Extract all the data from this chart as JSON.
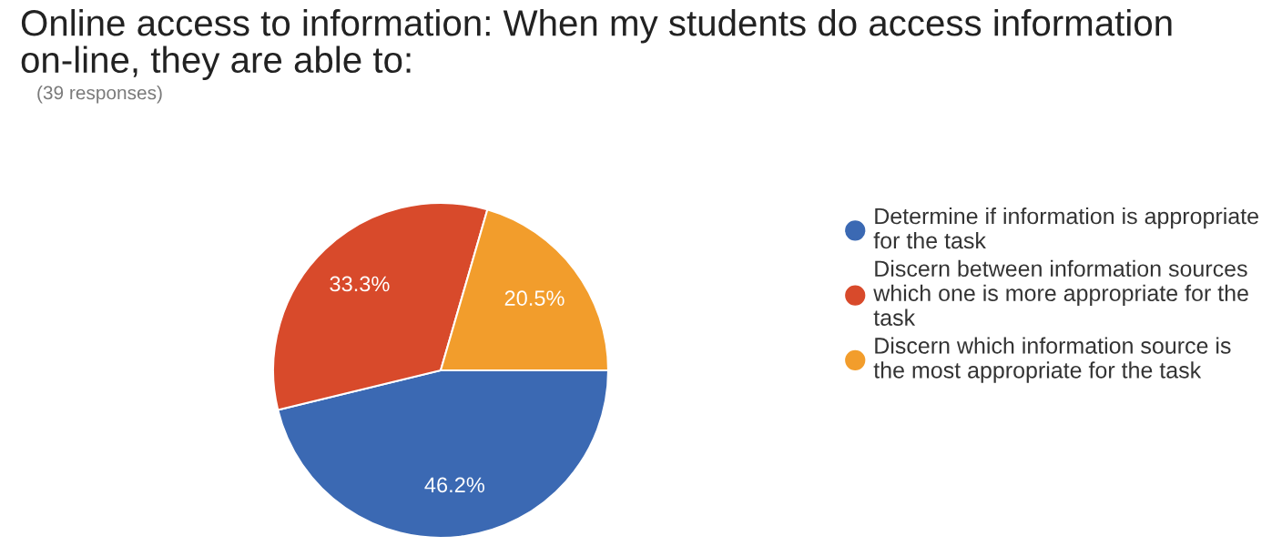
{
  "chart_data": {
    "type": "pie",
    "title": "Online access to information: When my students do access information on-line, they are able to:",
    "subtitle": "(39 responses)",
    "categories": [
      "Determine if information is appropriate for the task",
      "Discern between information sources which one is more appropriate for the task",
      "Discern which information source is the most appropriate for the task"
    ],
    "values": [
      46.2,
      33.3,
      20.5
    ],
    "colors": [
      "#3b69b3",
      "#d84a2b",
      "#f29d2c"
    ],
    "value_labels": [
      "46.2%",
      "33.3%",
      "20.5%"
    ],
    "legend": "right"
  }
}
